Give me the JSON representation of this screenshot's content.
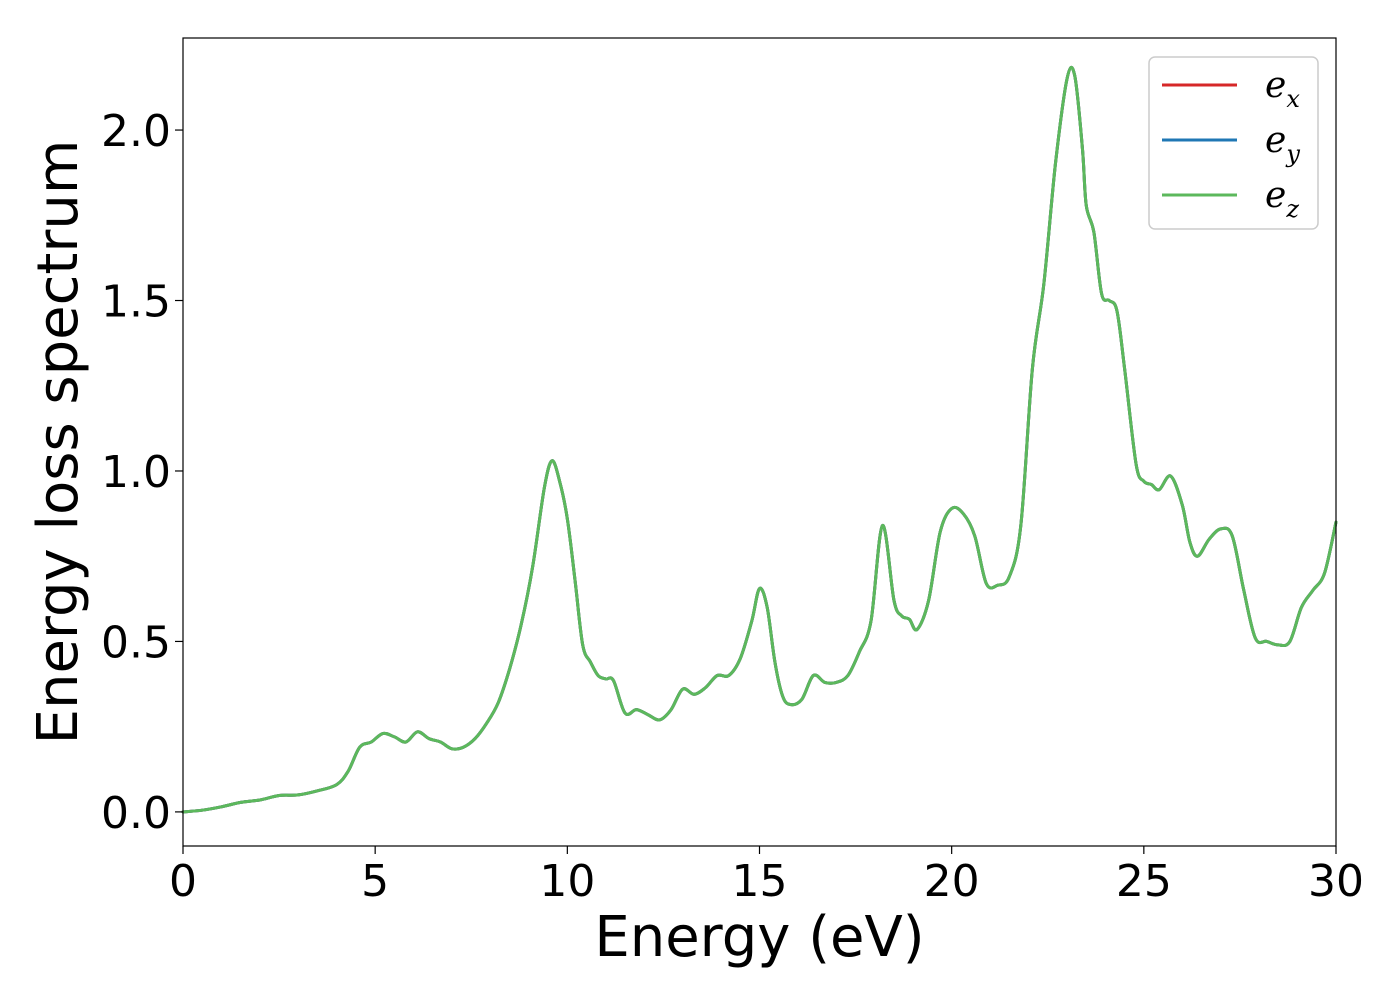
{
  "chart_data": {
    "type": "line",
    "xlabel": "Energy (eV)",
    "ylabel": "Energy loss spectrum",
    "xlim": [
      0,
      30
    ],
    "ylim": [
      -0.1,
      2.27
    ],
    "xticks": [
      0,
      5,
      10,
      15,
      20,
      25,
      30
    ],
    "xtick_labels": [
      "0",
      "5",
      "10",
      "15",
      "20",
      "25",
      "30"
    ],
    "yticks": [
      0.0,
      0.5,
      1.0,
      1.5,
      2.0
    ],
    "ytick_labels": [
      "0.0",
      "0.5",
      "1.0",
      "1.5",
      "2.0"
    ],
    "grid": false,
    "legend_position": "top-right",
    "x": [
      0,
      0.5,
      1,
      1.5,
      2,
      2.5,
      3,
      3.5,
      4,
      4.3,
      4.6,
      4.9,
      5.2,
      5.5,
      5.8,
      6.1,
      6.4,
      6.7,
      7.0,
      7.3,
      7.6,
      7.9,
      8.2,
      8.5,
      8.8,
      9.1,
      9.4,
      9.6,
      9.8,
      10.0,
      10.2,
      10.4,
      10.6,
      10.8,
      11.0,
      11.2,
      11.5,
      11.8,
      12.1,
      12.4,
      12.7,
      13.0,
      13.3,
      13.6,
      13.9,
      14.2,
      14.5,
      14.8,
      15.0,
      15.2,
      15.4,
      15.6,
      15.8,
      16.1,
      16.4,
      16.7,
      17.0,
      17.3,
      17.6,
      17.9,
      18.2,
      18.5,
      18.7,
      18.9,
      19.1,
      19.4,
      19.7,
      20.0,
      20.3,
      20.6,
      20.9,
      21.2,
      21.5,
      21.8,
      22.1,
      22.4,
      22.7,
      23.0,
      23.2,
      23.4,
      23.5,
      23.7,
      23.9,
      24.1,
      24.3,
      24.5,
      24.8,
      25.0,
      25.2,
      25.4,
      25.7,
      26.0,
      26.2,
      26.4,
      26.7,
      27.0,
      27.3,
      27.6,
      27.9,
      28.2,
      28.5,
      28.8,
      29.1,
      29.4,
      29.7,
      30.0
    ],
    "series": [
      {
        "name": "x",
        "color": "#d62728",
        "values": [
          0,
          0.005,
          0.015,
          0.028,
          0.035,
          0.048,
          0.05,
          0.062,
          0.08,
          0.12,
          0.19,
          0.205,
          0.23,
          0.22,
          0.205,
          0.235,
          0.215,
          0.205,
          0.185,
          0.19,
          0.215,
          0.26,
          0.32,
          0.42,
          0.55,
          0.72,
          0.95,
          1.03,
          0.97,
          0.86,
          0.68,
          0.49,
          0.44,
          0.4,
          0.39,
          0.385,
          0.29,
          0.3,
          0.285,
          0.27,
          0.3,
          0.36,
          0.345,
          0.365,
          0.4,
          0.4,
          0.45,
          0.56,
          0.655,
          0.6,
          0.44,
          0.34,
          0.315,
          0.33,
          0.4,
          0.38,
          0.38,
          0.4,
          0.47,
          0.56,
          0.84,
          0.62,
          0.575,
          0.565,
          0.535,
          0.62,
          0.82,
          0.89,
          0.875,
          0.81,
          0.67,
          0.665,
          0.69,
          0.84,
          1.3,
          1.55,
          1.9,
          2.15,
          2.16,
          1.95,
          1.78,
          1.7,
          1.52,
          1.5,
          1.47,
          1.3,
          1.02,
          0.97,
          0.96,
          0.945,
          0.985,
          0.9,
          0.79,
          0.75,
          0.8,
          0.83,
          0.81,
          0.65,
          0.51,
          0.5,
          0.49,
          0.5,
          0.6,
          0.65,
          0.7,
          0.85
        ]
      },
      {
        "name": "y",
        "color": "#1f77b4",
        "values": [
          0,
          0.005,
          0.015,
          0.028,
          0.035,
          0.048,
          0.05,
          0.062,
          0.08,
          0.12,
          0.19,
          0.205,
          0.23,
          0.22,
          0.205,
          0.235,
          0.215,
          0.205,
          0.185,
          0.19,
          0.215,
          0.26,
          0.32,
          0.42,
          0.55,
          0.72,
          0.95,
          1.03,
          0.97,
          0.86,
          0.68,
          0.49,
          0.44,
          0.4,
          0.39,
          0.385,
          0.29,
          0.3,
          0.285,
          0.27,
          0.3,
          0.36,
          0.345,
          0.365,
          0.4,
          0.4,
          0.45,
          0.56,
          0.655,
          0.6,
          0.44,
          0.34,
          0.315,
          0.33,
          0.4,
          0.38,
          0.38,
          0.4,
          0.47,
          0.56,
          0.84,
          0.62,
          0.575,
          0.565,
          0.535,
          0.62,
          0.82,
          0.89,
          0.875,
          0.81,
          0.67,
          0.665,
          0.69,
          0.84,
          1.3,
          1.55,
          1.9,
          2.15,
          2.16,
          1.95,
          1.78,
          1.7,
          1.52,
          1.5,
          1.47,
          1.3,
          1.02,
          0.97,
          0.96,
          0.945,
          0.985,
          0.9,
          0.79,
          0.75,
          0.8,
          0.83,
          0.81,
          0.65,
          0.51,
          0.5,
          0.49,
          0.5,
          0.6,
          0.65,
          0.7,
          0.85
        ]
      },
      {
        "name": "z",
        "color": "#5cb85c",
        "values": [
          0,
          0.005,
          0.015,
          0.028,
          0.035,
          0.048,
          0.05,
          0.062,
          0.08,
          0.12,
          0.19,
          0.205,
          0.23,
          0.22,
          0.205,
          0.235,
          0.215,
          0.205,
          0.185,
          0.19,
          0.215,
          0.26,
          0.32,
          0.42,
          0.55,
          0.72,
          0.95,
          1.03,
          0.97,
          0.86,
          0.68,
          0.49,
          0.44,
          0.4,
          0.39,
          0.385,
          0.29,
          0.3,
          0.285,
          0.27,
          0.3,
          0.36,
          0.345,
          0.365,
          0.4,
          0.4,
          0.45,
          0.56,
          0.655,
          0.6,
          0.44,
          0.34,
          0.315,
          0.33,
          0.4,
          0.38,
          0.38,
          0.4,
          0.47,
          0.56,
          0.84,
          0.62,
          0.575,
          0.565,
          0.535,
          0.62,
          0.82,
          0.89,
          0.875,
          0.81,
          0.67,
          0.665,
          0.69,
          0.84,
          1.3,
          1.55,
          1.9,
          2.15,
          2.16,
          1.95,
          1.78,
          1.7,
          1.52,
          1.5,
          1.47,
          1.3,
          1.02,
          0.97,
          0.96,
          0.945,
          0.985,
          0.9,
          0.79,
          0.75,
          0.8,
          0.83,
          0.81,
          0.65,
          0.51,
          0.5,
          0.49,
          0.5,
          0.6,
          0.65,
          0.7,
          0.85
        ]
      }
    ],
    "legend": [
      {
        "symbol": "e",
        "subscript": "x",
        "color": "#d62728"
      },
      {
        "symbol": "e",
        "subscript": "y",
        "color": "#1f77b4"
      },
      {
        "symbol": "e",
        "subscript": "z",
        "color": "#5cb85c"
      }
    ]
  }
}
